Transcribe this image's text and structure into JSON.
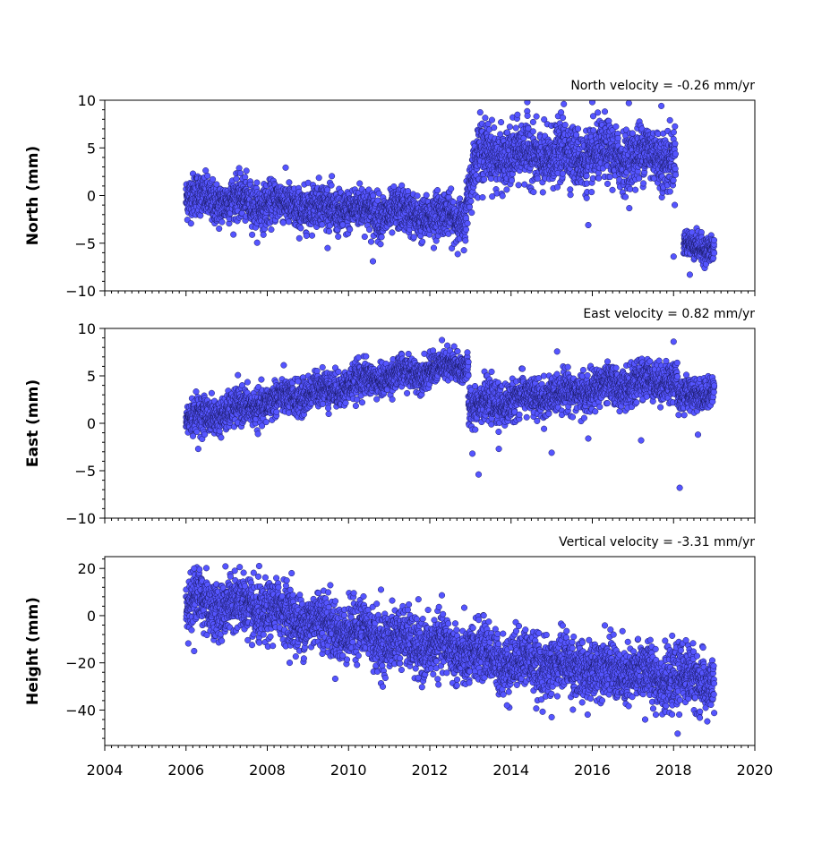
{
  "chart_data": [
    {
      "type": "scatter",
      "ylabel": "North (mm)",
      "annotation": "North velocity = -0.26 mm/yr",
      "xlim": [
        2004,
        2020
      ],
      "ylim": [
        -10,
        10
      ],
      "yticks": [
        -10,
        -5,
        0,
        5,
        10
      ],
      "ytick_labels": [
        "−10",
        "−5",
        "0",
        "5",
        "10"
      ],
      "segments": [
        {
          "x": [
            2006.0,
            2012.9
          ],
          "y": [
            -0.2,
            -2.4
          ],
          "spread": 1.1
        },
        {
          "x": [
            2012.9,
            2013.2
          ],
          "y": [
            0.0,
            4.5
          ],
          "spread": 1.3
        },
        {
          "x": [
            2013.2,
            2018.05
          ],
          "y": [
            4.2,
            4.2
          ],
          "spread": 1.5
        },
        {
          "x": [
            2018.25,
            2019.0
          ],
          "y": [
            -5.2,
            -5.5
          ],
          "spread": 0.7
        }
      ],
      "outliers": [
        {
          "x": 2010.6,
          "y": -6.9
        },
        {
          "x": 2012.1,
          "y": -5.5
        },
        {
          "x": 2014.4,
          "y": 9.8
        },
        {
          "x": 2015.3,
          "y": 9.6
        },
        {
          "x": 2016.0,
          "y": 9.8
        },
        {
          "x": 2016.9,
          "y": 9.7
        },
        {
          "x": 2017.7,
          "y": 9.4
        },
        {
          "x": 2015.9,
          "y": -3.1
        },
        {
          "x": 2018.4,
          "y": -8.3
        },
        {
          "x": 2018.0,
          "y": -6.4
        },
        {
          "x": 2013.3,
          "y": -0.2
        }
      ]
    },
    {
      "type": "scatter",
      "ylabel": "East (mm)",
      "annotation": "East velocity = 0.82 mm/yr",
      "xlim": [
        2004,
        2020
      ],
      "ylim": [
        -10,
        10
      ],
      "yticks": [
        -10,
        -5,
        0,
        5,
        10
      ],
      "ytick_labels": [
        "−10",
        "−5",
        "0",
        "5",
        "10"
      ],
      "segments": [
        {
          "x": [
            2006.0,
            2007.0
          ],
          "y": [
            0.4,
            1.2
          ],
          "spread": 0.9
        },
        {
          "x": [
            2007.0,
            2010.5
          ],
          "y": [
            1.2,
            4.6
          ],
          "spread": 0.9
        },
        {
          "x": [
            2010.5,
            2012.95
          ],
          "y": [
            4.6,
            6.2
          ],
          "spread": 0.8
        },
        {
          "x": [
            2012.95,
            2018.1
          ],
          "y": [
            1.8,
            4.8
          ],
          "spread": 1.0
        },
        {
          "x": [
            2018.1,
            2019.0
          ],
          "y": [
            2.5,
            3.6
          ],
          "spread": 0.8
        }
      ],
      "outliers": [
        {
          "x": 2006.3,
          "y": -2.7
        },
        {
          "x": 2013.2,
          "y": -5.4
        },
        {
          "x": 2013.7,
          "y": -2.7
        },
        {
          "x": 2015.0,
          "y": -3.1
        },
        {
          "x": 2015.9,
          "y": -1.6
        },
        {
          "x": 2017.2,
          "y": -1.8
        },
        {
          "x": 2018.15,
          "y": -6.8
        },
        {
          "x": 2018.0,
          "y": 8.6
        },
        {
          "x": 2012.6,
          "y": 8.1
        },
        {
          "x": 2018.6,
          "y": -1.2
        },
        {
          "x": 2013.05,
          "y": -3.2
        },
        {
          "x": 2009.5,
          "y": 1.6
        }
      ]
    },
    {
      "type": "scatter",
      "ylabel": "Height (mm)",
      "annotation": "Vertical velocity = -3.31 mm/yr",
      "xlim": [
        2004,
        2020
      ],
      "ylim": [
        -55,
        25
      ],
      "yticks": [
        -40,
        -20,
        0,
        20
      ],
      "ytick_labels": [
        "−40",
        "−20",
        "0",
        "20"
      ],
      "xticks": [
        2004,
        2006,
        2008,
        2010,
        2012,
        2014,
        2016,
        2018,
        2020
      ],
      "xtick_labels": [
        "2004",
        "2006",
        "2008",
        "2010",
        "2012",
        "2014",
        "2016",
        "2018",
        "2020"
      ],
      "segments": [
        {
          "x": [
            2006.0,
            2008.0
          ],
          "y": [
            6,
            2
          ],
          "spread": 6
        },
        {
          "x": [
            2008.0,
            2011.0
          ],
          "y": [
            2,
            -10
          ],
          "spread": 6
        },
        {
          "x": [
            2011.0,
            2014.0
          ],
          "y": [
            -10,
            -19
          ],
          "spread": 6
        },
        {
          "x": [
            2014.0,
            2019.0
          ],
          "y": [
            -19,
            -28
          ],
          "spread": 6
        }
      ],
      "outliers": [
        {
          "x": 2006.2,
          "y": 20
        },
        {
          "x": 2007.2,
          "y": 19
        },
        {
          "x": 2007.8,
          "y": 21
        },
        {
          "x": 2008.6,
          "y": 18
        },
        {
          "x": 2018.1,
          "y": -50
        },
        {
          "x": 2015.0,
          "y": -43
        },
        {
          "x": 2013.9,
          "y": -38
        },
        {
          "x": 2017.3,
          "y": -44
        },
        {
          "x": 2006.2,
          "y": -15
        },
        {
          "x": 2010.8,
          "y": 11
        }
      ]
    }
  ]
}
